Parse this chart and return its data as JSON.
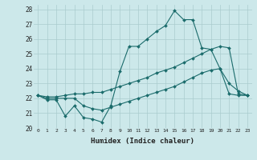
{
  "xlabel": "Humidex (Indice chaleur)",
  "background_color": "#cce8ea",
  "grid_color": "#aaccce",
  "line_color": "#1a6b6b",
  "x_min": 0,
  "x_max": 23,
  "y_min": 20,
  "y_max": 28,
  "line1_x": [
    0,
    1,
    2,
    3,
    4,
    5,
    6,
    7,
    8,
    9,
    10,
    11,
    12,
    13,
    14,
    15,
    16,
    17,
    18,
    19,
    20,
    21,
    22,
    23
  ],
  "line1_y": [
    22.2,
    21.9,
    21.9,
    20.8,
    21.5,
    20.7,
    20.6,
    20.4,
    21.5,
    23.8,
    25.5,
    25.5,
    26.0,
    26.5,
    26.9,
    27.9,
    27.3,
    27.3,
    25.4,
    25.3,
    24.0,
    23.0,
    22.5,
    22.2
  ],
  "line2_x": [
    0,
    1,
    2,
    3,
    4,
    5,
    6,
    7,
    8,
    9,
    10,
    11,
    12,
    13,
    14,
    15,
    16,
    17,
    18,
    19,
    20,
    21,
    22,
    23
  ],
  "line2_y": [
    22.2,
    22.1,
    22.1,
    22.2,
    22.3,
    22.3,
    22.4,
    22.4,
    22.6,
    22.8,
    23.0,
    23.2,
    23.4,
    23.7,
    23.9,
    24.1,
    24.4,
    24.7,
    25.0,
    25.3,
    25.5,
    25.4,
    22.3,
    22.2
  ],
  "line3_x": [
    0,
    1,
    2,
    3,
    4,
    5,
    6,
    7,
    8,
    9,
    10,
    11,
    12,
    13,
    14,
    15,
    16,
    17,
    18,
    19,
    20,
    21,
    22,
    23
  ],
  "line3_y": [
    22.2,
    22.0,
    22.0,
    22.0,
    22.0,
    21.5,
    21.3,
    21.2,
    21.4,
    21.6,
    21.8,
    22.0,
    22.2,
    22.4,
    22.6,
    22.8,
    23.1,
    23.4,
    23.7,
    23.9,
    24.0,
    22.3,
    22.2,
    22.2
  ]
}
